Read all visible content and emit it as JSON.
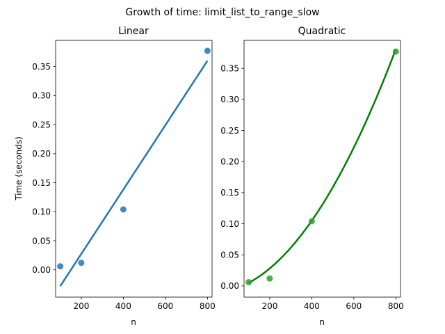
{
  "figure": {
    "suptitle": "Growth of time: limit_list_to_range_slow"
  },
  "chart_data": [
    {
      "type": "scatter",
      "title": "Linear",
      "xlabel": "n",
      "ylabel": "Time (seconds)",
      "xlim": [
        78,
        822
      ],
      "ylim": [
        -0.047,
        0.395
      ],
      "xticks": [
        200,
        400,
        600,
        800
      ],
      "yticks": [
        0.0,
        0.05,
        0.1,
        0.15,
        0.2,
        0.25,
        0.3,
        0.35
      ],
      "yticklabels": [
        "0.00",
        "0.05",
        "0.10",
        "0.15",
        "0.20",
        "0.25",
        "0.30",
        "0.35"
      ],
      "grid": false,
      "series": [
        {
          "kind": "points",
          "x": [
            100,
            200,
            400,
            800
          ],
          "y": [
            0.006,
            0.012,
            0.104,
            0.377
          ],
          "color": "#1f77b4"
        },
        {
          "kind": "fit-linear",
          "coefficients": [
            0.0005543,
            -0.0835
          ],
          "x_range": [
            100,
            800
          ],
          "color": "#1f77b4"
        }
      ]
    },
    {
      "type": "scatter",
      "title": "Quadratic",
      "xlabel": "n",
      "ylabel": "",
      "xlim": [
        78,
        822
      ],
      "ylim": [
        -0.018,
        0.395
      ],
      "xticks": [
        200,
        400,
        600,
        800
      ],
      "yticks": [
        0.0,
        0.05,
        0.1,
        0.15,
        0.2,
        0.25,
        0.3,
        0.35
      ],
      "yticklabels": [
        "0.00",
        "0.05",
        "0.10",
        "0.15",
        "0.20",
        "0.25",
        "0.30",
        "0.35"
      ],
      "grid": false,
      "series": [
        {
          "kind": "points",
          "x": [
            100,
            200,
            400,
            800
          ],
          "y": [
            0.006,
            0.012,
            0.104,
            0.377
          ],
          "color": "#2ca02c"
        },
        {
          "kind": "fit-quadratic",
          "coefficients": [
            5.102e-07,
            7.81e-05,
            -0.0079
          ],
          "x_range": [
            100,
            800
          ],
          "color": "#008000"
        }
      ]
    }
  ]
}
